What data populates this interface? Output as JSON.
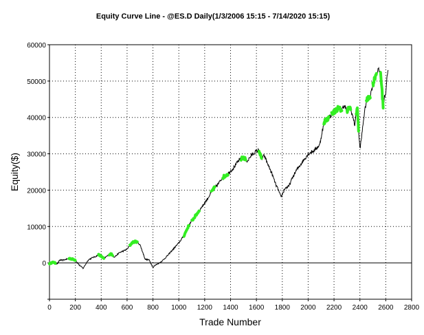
{
  "chart_data": {
    "type": "line",
    "title": "Equity Curve Line - @ES.D Daily(1/3/2006 15:15 - 7/14/2020 15:15)",
    "xlabel": "Trade Number",
    "ylabel": "Equity($)",
    "xlim": [
      0,
      2800
    ],
    "ylim": [
      -10000,
      60000
    ],
    "x_ticks": [
      0,
      200,
      400,
      600,
      800,
      1000,
      1200,
      1400,
      1600,
      1800,
      2000,
      2200,
      2400,
      2600,
      2800
    ],
    "x_tick_labels": [
      "0",
      "200",
      "400",
      "600",
      "800",
      "1000",
      "1200",
      "1400",
      "1600",
      "1800",
      "2000",
      "2200",
      "2400",
      "2600",
      "2800"
    ],
    "y_ticks": [
      0,
      10000,
      20000,
      30000,
      40000,
      50000,
      60000
    ],
    "y_tick_labels": [
      "0",
      "10000",
      "20000",
      "30000",
      "40000",
      "50000",
      "60000"
    ],
    "grid": true,
    "zero_line": true,
    "line_color": "#000000",
    "highlight_color": "#33ee22",
    "series": [
      {
        "x": [
          0,
          30,
          60,
          80,
          100,
          130,
          160,
          200,
          230,
          260,
          300,
          330,
          360,
          380,
          400,
          420,
          450,
          480,
          500,
          540,
          580,
          600,
          640,
          670,
          700,
          720,
          740,
          770,
          800,
          820,
          850,
          870,
          900,
          950,
          1000,
          1040,
          1080,
          1110,
          1140,
          1180,
          1220,
          1260,
          1300,
          1340,
          1380,
          1420,
          1460,
          1500,
          1530,
          1560,
          1590,
          1620,
          1640,
          1660,
          1690,
          1720,
          1750,
          1770,
          1790,
          1820,
          1850,
          1880,
          1910,
          1950,
          2000,
          2050,
          2090,
          2110,
          2130,
          2160,
          2200,
          2230,
          2260,
          2280,
          2300,
          2320,
          2340,
          2360,
          2380,
          2390,
          2400,
          2410,
          2430,
          2450,
          2480,
          2500,
          2520,
          2540,
          2560,
          2580,
          2590,
          2600,
          2610,
          2620
        ],
        "y": [
          -200,
          200,
          -300,
          800,
          700,
          1000,
          1200,
          800,
          -600,
          -1500,
          800,
          1400,
          1800,
          2300,
          1800,
          1200,
          2000,
          2500,
          1500,
          2800,
          3400,
          3800,
          5600,
          5900,
          5000,
          3000,
          1000,
          800,
          -1200,
          -600,
          0,
          500,
          1500,
          3500,
          5500,
          7500,
          10500,
          12000,
          13500,
          15500,
          17500,
          20000,
          21500,
          23500,
          24500,
          26000,
          28000,
          29000,
          28000,
          29500,
          30500,
          31000,
          28500,
          29500,
          27000,
          24500,
          21500,
          20000,
          18000,
          20500,
          21000,
          23500,
          25500,
          27500,
          30000,
          31000,
          32500,
          36500,
          39000,
          40000,
          41500,
          42500,
          42000,
          43500,
          41500,
          43000,
          41000,
          38000,
          43000,
          36000,
          31500,
          33500,
          40000,
          44500,
          46000,
          49000,
          51500,
          53000,
          52500,
          43000,
          45500,
          47000,
          51500,
          53000
        ]
      }
    ],
    "highlight_segments": [
      [
        0,
        45
      ],
      [
        150,
        200
      ],
      [
        380,
        420
      ],
      [
        460,
        490
      ],
      [
        620,
        680
      ],
      [
        1040,
        1080
      ],
      [
        1100,
        1160
      ],
      [
        1250,
        1280
      ],
      [
        1340,
        1380
      ],
      [
        1480,
        1520
      ],
      [
        1620,
        1640
      ],
      [
        2120,
        2160
      ],
      [
        2180,
        2260
      ],
      [
        2300,
        2330
      ],
      [
        2370,
        2390
      ],
      [
        2450,
        2480
      ],
      [
        2500,
        2530
      ],
      [
        2560,
        2580
      ]
    ]
  }
}
